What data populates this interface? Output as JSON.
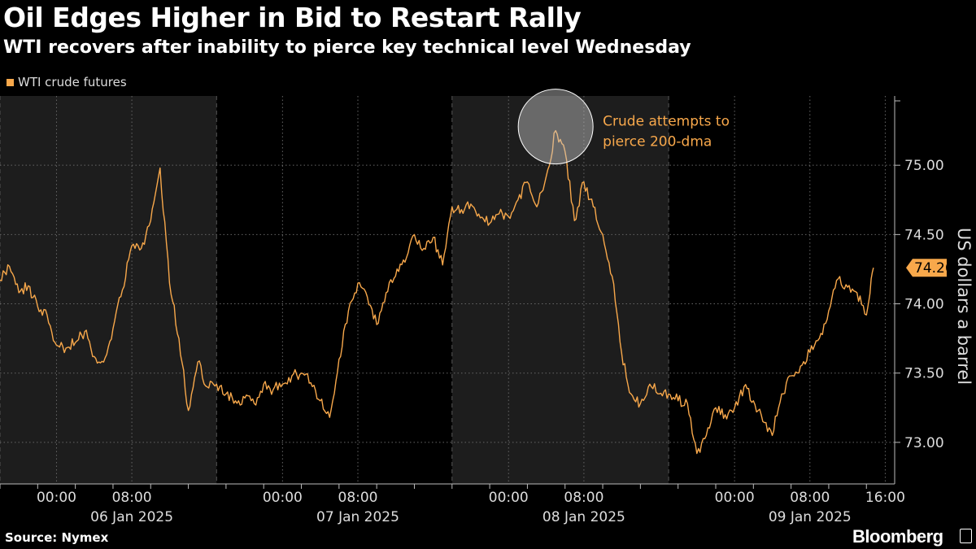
{
  "header": {
    "title": "Oil Edges Higher in Bid to Restart Rally",
    "subtitle": "WTI recovers after inability to pierce key technical level Wednesday"
  },
  "footer": {
    "source": "Source: Nymex",
    "brand": "Bloomberg"
  },
  "colors": {
    "line": "#f8a84b",
    "shade": "#1d1d1d",
    "background": "#000000",
    "grid": "#666666"
  },
  "chart_data": {
    "type": "line",
    "legend": "top-left",
    "grid": true,
    "ylabel": "US dollars a barrel",
    "ylim": [
      72.7,
      75.5
    ],
    "yticks": [
      73.0,
      73.5,
      74.0,
      74.5,
      75.0
    ],
    "ytick_labels": [
      "73.00",
      "73.50",
      "74.00",
      "74.50",
      "75.00"
    ],
    "xlim": [
      "2025-01-05 18:00",
      "2025-01-09 17:00"
    ],
    "xticks": [
      {
        "time": "2025-01-06 00:00",
        "label": "00:00"
      },
      {
        "time": "2025-01-06 08:00",
        "label": "08:00"
      },
      {
        "time": "2025-01-07 00:00",
        "label": "00:00"
      },
      {
        "time": "2025-01-07 08:00",
        "label": "08:00"
      },
      {
        "time": "2025-01-08 00:00",
        "label": "00:00"
      },
      {
        "time": "2025-01-08 08:00",
        "label": "08:00"
      },
      {
        "time": "2025-01-09 00:00",
        "label": "00:00"
      },
      {
        "time": "2025-01-09 08:00",
        "label": "08:00"
      },
      {
        "time": "2025-01-09 16:00",
        "label": "16:00"
      }
    ],
    "day_labels": [
      {
        "time": "2025-01-06 08:00",
        "label": "06 Jan 2025"
      },
      {
        "time": "2025-01-07 08:00",
        "label": "07 Jan 2025"
      },
      {
        "time": "2025-01-08 08:00",
        "label": "08 Jan 2025"
      },
      {
        "time": "2025-01-09 08:00",
        "label": "09 Jan 2025"
      }
    ],
    "shaded_sessions": [
      {
        "start": "2025-01-05 18:00",
        "end": "2025-01-06 17:00"
      },
      {
        "start": "2025-01-07 18:00",
        "end": "2025-01-08 17:00"
      }
    ],
    "series": [
      {
        "name": "WTI crude futures",
        "last_label": "74.26",
        "points": [
          [
            "2025-01-05 18:00",
            74.17
          ],
          [
            "2025-01-05 19:00",
            74.27
          ],
          [
            "2025-01-05 20:00",
            74.08
          ],
          [
            "2025-01-05 21:00",
            74.13
          ],
          [
            "2025-01-05 22:00",
            73.98
          ],
          [
            "2025-01-05 23:00",
            73.92
          ],
          [
            "2025-01-06 00:00",
            73.7
          ],
          [
            "2025-01-06 01:00",
            73.68
          ],
          [
            "2025-01-06 02:00",
            73.72
          ],
          [
            "2025-01-06 03:00",
            73.8
          ],
          [
            "2025-01-06 04:00",
            73.62
          ],
          [
            "2025-01-06 05:00",
            73.58
          ],
          [
            "2025-01-06 06:00",
            73.82
          ],
          [
            "2025-01-06 07:00",
            74.1
          ],
          [
            "2025-01-06 08:00",
            74.42
          ],
          [
            "2025-01-06 09:00",
            74.4
          ],
          [
            "2025-01-06 10:00",
            74.6
          ],
          [
            "2025-01-06 11:00",
            74.98
          ],
          [
            "2025-01-06 12:00",
            74.15
          ],
          [
            "2025-01-06 13:00",
            73.75
          ],
          [
            "2025-01-06 14:00",
            73.23
          ],
          [
            "2025-01-06 15:00",
            73.58
          ],
          [
            "2025-01-06 16:00",
            73.4
          ],
          [
            "2025-01-06 17:00",
            73.42
          ],
          [
            "2025-01-06 18:00",
            73.35
          ],
          [
            "2025-01-06 19:00",
            73.3
          ],
          [
            "2025-01-06 20:00",
            73.32
          ],
          [
            "2025-01-06 21:00",
            73.28
          ],
          [
            "2025-01-06 22:00",
            73.42
          ],
          [
            "2025-01-06 23:00",
            73.38
          ],
          [
            "2025-01-07 00:00",
            73.42
          ],
          [
            "2025-01-07 01:00",
            73.48
          ],
          [
            "2025-01-07 02:00",
            73.5
          ],
          [
            "2025-01-07 03:00",
            73.43
          ],
          [
            "2025-01-07 04:00",
            73.3
          ],
          [
            "2025-01-07 05:00",
            73.18
          ],
          [
            "2025-01-07 06:00",
            73.6
          ],
          [
            "2025-01-07 07:00",
            73.95
          ],
          [
            "2025-01-07 08:00",
            74.15
          ],
          [
            "2025-01-07 09:00",
            74.05
          ],
          [
            "2025-01-07 10:00",
            73.85
          ],
          [
            "2025-01-07 11:00",
            74.08
          ],
          [
            "2025-01-07 12:00",
            74.2
          ],
          [
            "2025-01-07 13:00",
            74.3
          ],
          [
            "2025-01-07 14:00",
            74.5
          ],
          [
            "2025-01-07 15:00",
            74.4
          ],
          [
            "2025-01-07 16:00",
            74.48
          ],
          [
            "2025-01-07 17:00",
            74.28
          ],
          [
            "2025-01-07 18:00",
            74.7
          ],
          [
            "2025-01-07 19:00",
            74.68
          ],
          [
            "2025-01-07 20:00",
            74.72
          ],
          [
            "2025-01-07 21:00",
            74.62
          ],
          [
            "2025-01-07 22:00",
            74.58
          ],
          [
            "2025-01-07 23:00",
            74.65
          ],
          [
            "2025-01-08 00:00",
            74.63
          ],
          [
            "2025-01-08 01:00",
            74.75
          ],
          [
            "2025-01-08 02:00",
            74.88
          ],
          [
            "2025-01-08 03:00",
            74.7
          ],
          [
            "2025-01-08 04:00",
            74.92
          ],
          [
            "2025-01-08 05:00",
            75.25
          ],
          [
            "2025-01-08 06:00",
            75.1
          ],
          [
            "2025-01-08 07:00",
            74.6
          ],
          [
            "2025-01-08 08:00",
            74.88
          ],
          [
            "2025-01-08 09:00",
            74.7
          ],
          [
            "2025-01-08 10:00",
            74.5
          ],
          [
            "2025-01-08 11:00",
            74.2
          ],
          [
            "2025-01-08 12:00",
            73.65
          ],
          [
            "2025-01-08 13:00",
            73.35
          ],
          [
            "2025-01-08 14:00",
            73.28
          ],
          [
            "2025-01-08 15:00",
            73.42
          ],
          [
            "2025-01-08 16:00",
            73.35
          ],
          [
            "2025-01-08 17:00",
            73.35
          ],
          [
            "2025-01-08 18:00",
            73.3
          ],
          [
            "2025-01-08 19:00",
            73.28
          ],
          [
            "2025-01-08 20:00",
            72.92
          ],
          [
            "2025-01-08 21:00",
            73.05
          ],
          [
            "2025-01-08 22:00",
            73.25
          ],
          [
            "2025-01-08 23:00",
            73.2
          ],
          [
            "2025-01-09 00:00",
            73.25
          ],
          [
            "2025-01-09 01:00",
            73.4
          ],
          [
            "2025-01-09 02:00",
            73.3
          ],
          [
            "2025-01-09 03:00",
            73.15
          ],
          [
            "2025-01-09 04:00",
            73.05
          ],
          [
            "2025-01-09 05:00",
            73.35
          ],
          [
            "2025-01-09 06:00",
            73.48
          ],
          [
            "2025-01-09 07:00",
            73.55
          ],
          [
            "2025-01-09 08:00",
            73.65
          ],
          [
            "2025-01-09 09:00",
            73.75
          ],
          [
            "2025-01-09 10:00",
            73.95
          ],
          [
            "2025-01-09 11:00",
            74.18
          ],
          [
            "2025-01-09 12:00",
            74.12
          ],
          [
            "2025-01-09 13:00",
            74.08
          ],
          [
            "2025-01-09 14:00",
            73.92
          ],
          [
            "2025-01-09 14:45",
            74.26
          ]
        ]
      }
    ],
    "annotations": [
      {
        "text_lines": [
          "Crude attempts to",
          "pierce 200-dma"
        ],
        "time": "2025-01-08 05:00",
        "value": 75.25
      }
    ]
  }
}
